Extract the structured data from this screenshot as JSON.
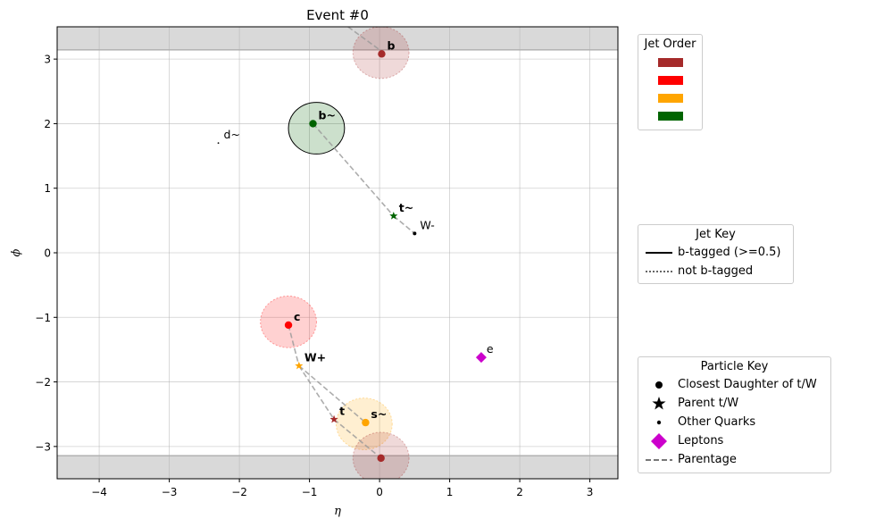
{
  "chart_data": {
    "type": "scatter",
    "title": "Event #0",
    "xlabel": "η",
    "ylabel": "ϕ",
    "xlim": [
      -4.6,
      3.4
    ],
    "ylim": [
      -3.5,
      3.5
    ],
    "xticks": [
      -4,
      -3,
      -2,
      -1,
      0,
      1,
      2,
      3
    ],
    "yticks": [
      -3,
      -2,
      -1,
      0,
      1,
      2,
      3
    ],
    "xtick_labels": [
      "−4",
      "−3",
      "−2",
      "−1",
      "0",
      "1",
      "2",
      "3"
    ],
    "ytick_labels": [
      "−3",
      "−2",
      "−1",
      "0",
      "1",
      "2",
      "3"
    ],
    "grid": true,
    "shaded_bands": [
      {
        "from": 3.1416,
        "to": 3.5,
        "color": "#d9d9d9"
      },
      {
        "from": -3.5,
        "to": -3.1416,
        "color": "#d9d9d9"
      }
    ],
    "jets": [
      {
        "eta": -0.9,
        "phi": 1.93,
        "radius": 0.4,
        "color": "#006400",
        "btagged": true
      },
      {
        "eta": -1.3,
        "phi": -1.07,
        "radius": 0.4,
        "color": "#ff0000",
        "btagged": false
      },
      {
        "eta": -0.22,
        "phi": -2.65,
        "radius": 0.4,
        "color": "#ffa500",
        "btagged": false
      },
      {
        "eta": 0.02,
        "phi": 3.1,
        "radius": 0.4,
        "color": "#a52a2a",
        "btagged": false
      },
      {
        "eta": 0.02,
        "phi": -3.18,
        "radius": 0.4,
        "color": "#a52a2a",
        "btagged": false
      }
    ],
    "parentage_lines": [
      {
        "x": [
          -0.45,
          0.03
        ],
        "y": [
          3.5,
          3.12
        ]
      },
      {
        "x": [
          -0.95,
          0.2
        ],
        "y": [
          2.0,
          0.57
        ]
      },
      {
        "x": [
          0.2,
          0.5
        ],
        "y": [
          0.57,
          0.3
        ]
      },
      {
        "x": [
          -1.3,
          -1.15
        ],
        "y": [
          -1.12,
          -1.75
        ]
      },
      {
        "x": [
          -1.15,
          -0.65
        ],
        "y": [
          -1.75,
          -2.58
        ]
      },
      {
        "x": [
          -1.15,
          -0.2
        ],
        "y": [
          -1.75,
          -2.63
        ]
      },
      {
        "x": [
          -0.65,
          0.02
        ],
        "y": [
          -2.58,
          -3.18
        ]
      }
    ],
    "particles": [
      {
        "label": "b",
        "eta": 0.03,
        "phi": 3.08,
        "kind": "daughter",
        "color": "#a52a2a"
      },
      {
        "label": "b~",
        "eta": -0.95,
        "phi": 2.0,
        "kind": "daughter",
        "color": "#006400"
      },
      {
        "label": "d~",
        "eta": -2.3,
        "phi": 1.7,
        "kind": "other",
        "color": "#000000"
      },
      {
        "label": "t~",
        "eta": 0.2,
        "phi": 0.57,
        "kind": "parent",
        "color": "#006400"
      },
      {
        "label": "W-",
        "eta": 0.5,
        "phi": 0.3,
        "kind": "other",
        "color": "#000000"
      },
      {
        "label": "c",
        "eta": -1.3,
        "phi": -1.12,
        "kind": "daughter",
        "color": "#ff0000"
      },
      {
        "label": "e",
        "eta": 1.45,
        "phi": -1.62,
        "kind": "lepton",
        "color": "#cc00cc"
      },
      {
        "label": "W+",
        "eta": -1.15,
        "phi": -1.75,
        "kind": "parent",
        "color": "#ffa500"
      },
      {
        "label": "t",
        "eta": -0.65,
        "phi": -2.58,
        "kind": "parent",
        "color": "#a52a2a"
      },
      {
        "label": "s~",
        "eta": -0.2,
        "phi": -2.63,
        "kind": "daughter",
        "color": "#ffa500"
      },
      {
        "label": "",
        "eta": 0.02,
        "phi": -3.18,
        "kind": "daughter",
        "color": "#a52a2a"
      }
    ]
  },
  "legends": {
    "jet_order": {
      "title": "Jet Order",
      "swatches": [
        "#a52a2a",
        "#ff0000",
        "#ffa500",
        "#006400"
      ]
    },
    "jet_key": {
      "title": "Jet Key",
      "items": [
        {
          "label": "b-tagged (>=0.5)",
          "style": "solid"
        },
        {
          "label": "not b-tagged",
          "style": "dotted"
        }
      ]
    },
    "particle_key": {
      "title": "Particle Key",
      "items": [
        {
          "label": "Closest Daughter of t/W",
          "marker": "circle"
        },
        {
          "label": "Parent t/W",
          "marker": "star"
        },
        {
          "label": "Other Quarks",
          "marker": "small-dot"
        },
        {
          "label": "Leptons",
          "marker": "diamond"
        },
        {
          "label": "Parentage",
          "marker": "dashed-line"
        }
      ]
    }
  }
}
